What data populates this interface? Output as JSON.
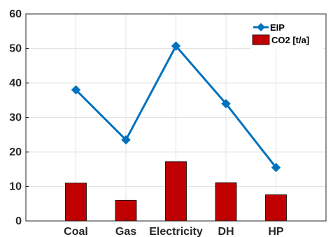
{
  "chart_data": {
    "type": "bar",
    "categories": [
      "Coal",
      "Gas",
      "Electricity",
      "DH",
      "HP"
    ],
    "series": [
      {
        "name": "EIP",
        "kind": "line",
        "color": "#0072BD",
        "marker": "diamond",
        "values": [
          38,
          23.5,
          50.7,
          34,
          15.5
        ]
      },
      {
        "name": "CO2 [t/a]",
        "kind": "bar",
        "color": "#C00000",
        "values": [
          11,
          6,
          17.2,
          11.1,
          7.6
        ]
      }
    ],
    "title": "",
    "xlabel": "",
    "ylabel": "",
    "ylim": [
      0,
      60
    ],
    "yticks": [
      0,
      10,
      20,
      30,
      40,
      50,
      60
    ],
    "grid": true,
    "legend": "top-right"
  }
}
